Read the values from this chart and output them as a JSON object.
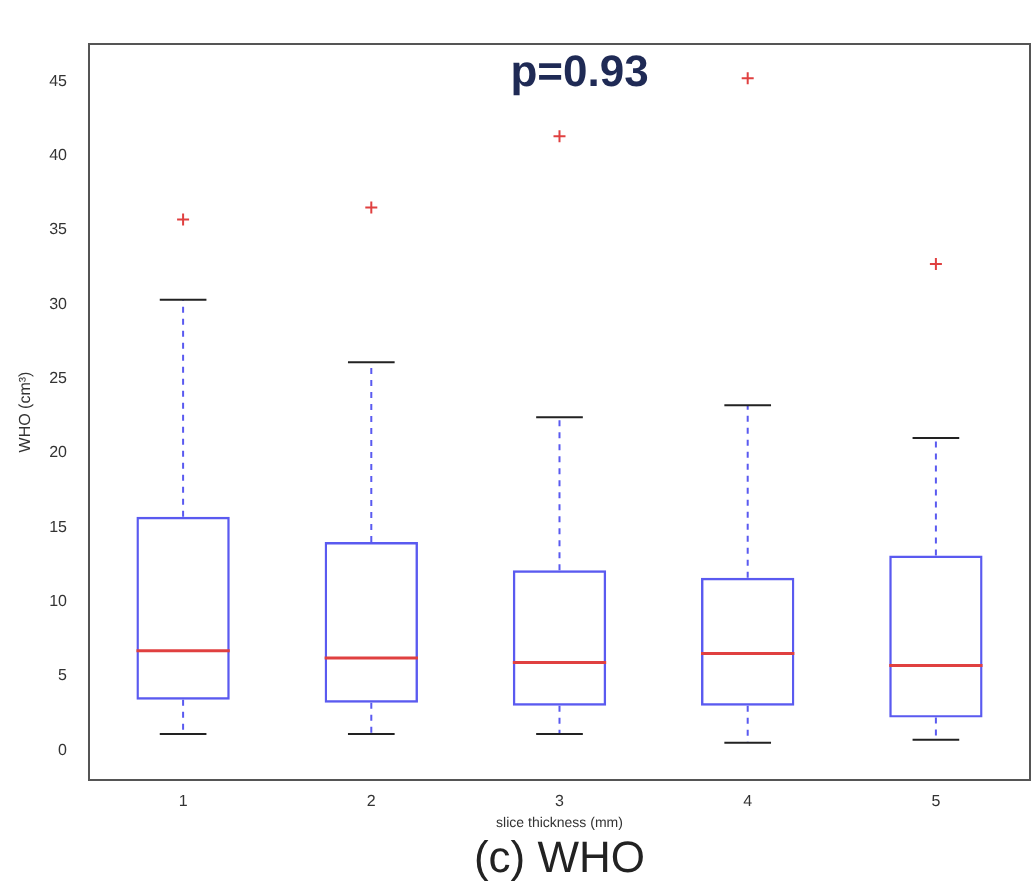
{
  "chart_data": {
    "type": "box",
    "xlabel": "slice thickness (mm)",
    "ylabel": "WHO (cm³)",
    "categories": [
      "1",
      "2",
      "3",
      "4",
      "5"
    ],
    "color": "#5a5af0",
    "boxes": [
      {
        "low": 1.1,
        "q1": 3.4,
        "median": 6.7,
        "q3": 15.7,
        "high": 30.3,
        "outliers": [
          35.7
        ]
      },
      {
        "low": 1.1,
        "q1": 3.2,
        "median": 6.2,
        "q3": 14,
        "high": 26.1,
        "outliers": [
          36.5
        ]
      },
      {
        "low": 1.1,
        "q1": 3,
        "median": 5.9,
        "q3": 12.1,
        "high": 22.4,
        "outliers": [
          41.3
        ]
      },
      {
        "low": 0.5,
        "q1": 3,
        "median": 6.5,
        "q3": 11.6,
        "high": 23.2,
        "outliers": [
          45.2
        ]
      },
      {
        "low": 0.7,
        "q1": 2.2,
        "median": 5.7,
        "q3": 13.1,
        "high": 21,
        "outliers": [
          32.7
        ]
      }
    ],
    "ylim": [
      -2,
      47.5
    ],
    "yticks": [
      0,
      5,
      10,
      15,
      20,
      25,
      30,
      35,
      40,
      45
    ],
    "grid": false,
    "legend": false,
    "marker": "cross",
    "line_style": "dashed",
    "annotations": [
      "p=0.93",
      "(c) WHO"
    ]
  }
}
